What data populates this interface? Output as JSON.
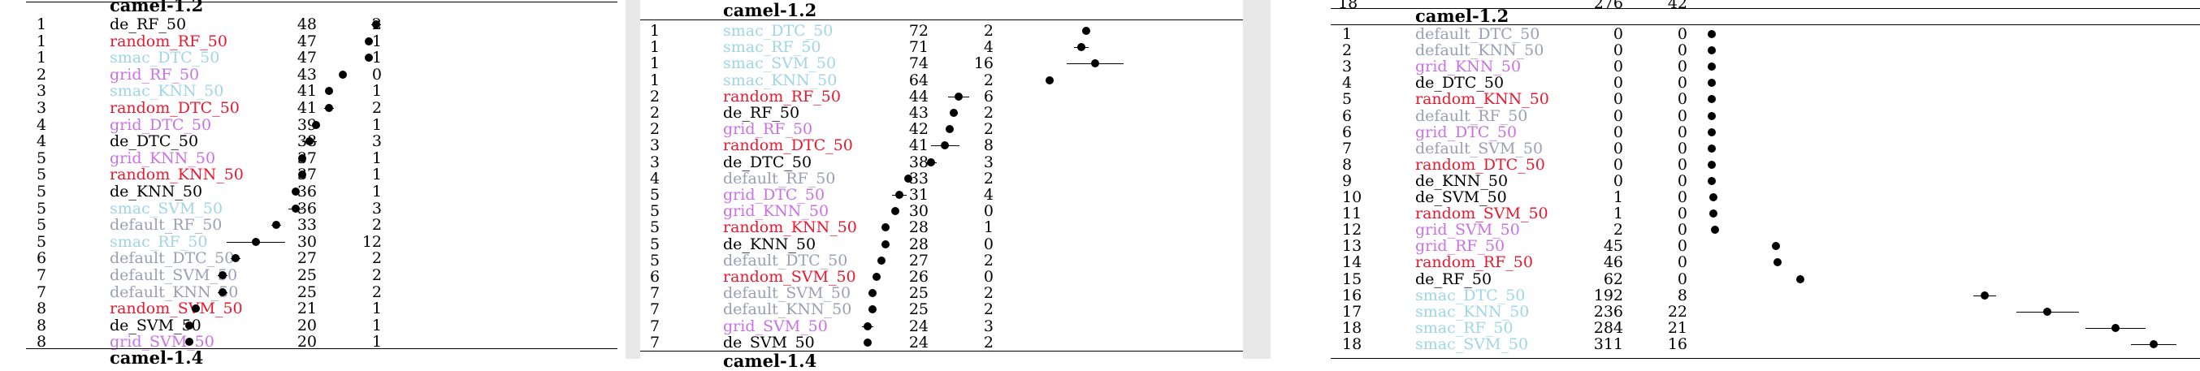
{
  "colors": {
    "de": "#000000",
    "random": "#e8182f",
    "smac": "#9fd6e6",
    "grid": "#c872e4",
    "default": "#9a9fb4"
  },
  "panels": [
    {
      "title": "camel-1.2",
      "bottom_title": "camel-1.4",
      "scale_max": 100,
      "rows": [
        {
          "rank": "1",
          "name": "de_RF_50",
          "c1": "48",
          "c2": "2",
          "mean": 48,
          "err": 2
        },
        {
          "rank": "1",
          "name": "random_RF_50",
          "c1": "47",
          "c2": "1",
          "mean": 47,
          "err": 1
        },
        {
          "rank": "1",
          "name": "smac_DTC_50",
          "c1": "47",
          "c2": "1",
          "mean": 47,
          "err": 1
        },
        {
          "rank": "2",
          "name": "grid_RF_50",
          "c1": "43",
          "c2": "0",
          "mean": 43,
          "err": 0
        },
        {
          "rank": "3",
          "name": "smac_KNN_50",
          "c1": "41",
          "c2": "1",
          "mean": 41,
          "err": 1
        },
        {
          "rank": "3",
          "name": "random_DTC_50",
          "c1": "41",
          "c2": "2",
          "mean": 41,
          "err": 2
        },
        {
          "rank": "4",
          "name": "grid_DTC_50",
          "c1": "39",
          "c2": "1",
          "mean": 39,
          "err": 1
        },
        {
          "rank": "4",
          "name": "de_DTC_50",
          "c1": "38",
          "c2": "3",
          "mean": 38,
          "err": 3
        },
        {
          "rank": "5",
          "name": "grid_KNN_50",
          "c1": "37",
          "c2": "1",
          "mean": 37,
          "err": 1
        },
        {
          "rank": "5",
          "name": "random_KNN_50",
          "c1": "37",
          "c2": "1",
          "mean": 37,
          "err": 1
        },
        {
          "rank": "5",
          "name": "de_KNN_50",
          "c1": "36",
          "c2": "1",
          "mean": 36,
          "err": 1
        },
        {
          "rank": "5",
          "name": "smac_SVM_50",
          "c1": "36",
          "c2": "3",
          "mean": 36,
          "err": 3
        },
        {
          "rank": "5",
          "name": "default_RF_50",
          "c1": "33",
          "c2": "2",
          "mean": 33,
          "err": 2
        },
        {
          "rank": "5",
          "name": "smac_RF_50",
          "c1": "30",
          "c2": "12",
          "mean": 30,
          "err": 12
        },
        {
          "rank": "6",
          "name": "default_DTC_50",
          "c1": "27",
          "c2": "2",
          "mean": 27,
          "err": 2
        },
        {
          "rank": "7",
          "name": "default_SVM_50",
          "c1": "25",
          "c2": "2",
          "mean": 25,
          "err": 2
        },
        {
          "rank": "7",
          "name": "default_KNN_50",
          "c1": "25",
          "c2": "2",
          "mean": 25,
          "err": 2
        },
        {
          "rank": "8",
          "name": "random_SVM_50",
          "c1": "21",
          "c2": "1",
          "mean": 21,
          "err": 1
        },
        {
          "rank": "8",
          "name": "de_SVM_50",
          "c1": "20",
          "c2": "1",
          "mean": 20,
          "err": 1
        },
        {
          "rank": "8",
          "name": "grid_SVM_50",
          "c1": "20",
          "c2": "1",
          "mean": 20,
          "err": 1
        }
      ]
    },
    {
      "title": "camel-1.2",
      "bottom_title": "camel-1.4",
      "scale_max": 100,
      "rows": [
        {
          "rank": "1",
          "name": "smac_DTC_50",
          "c1": "72",
          "c2": "2",
          "mean": 72,
          "err": 2
        },
        {
          "rank": "1",
          "name": "smac_RF_50",
          "c1": "71",
          "c2": "4",
          "mean": 71,
          "err": 4
        },
        {
          "rank": "1",
          "name": "smac_SVM_50",
          "c1": "74",
          "c2": "16",
          "mean": 74,
          "err": 16
        },
        {
          "rank": "1",
          "name": "smac_KNN_50",
          "c1": "64",
          "c2": "2",
          "mean": 64,
          "err": 2
        },
        {
          "rank": "2",
          "name": "random_RF_50",
          "c1": "44",
          "c2": "6",
          "mean": 44,
          "err": 6
        },
        {
          "rank": "2",
          "name": "de_RF_50",
          "c1": "43",
          "c2": "2",
          "mean": 43,
          "err": 2
        },
        {
          "rank": "2",
          "name": "grid_RF_50",
          "c1": "42",
          "c2": "2",
          "mean": 42,
          "err": 2
        },
        {
          "rank": "3",
          "name": "random_DTC_50",
          "c1": "41",
          "c2": "8",
          "mean": 41,
          "err": 8
        },
        {
          "rank": "3",
          "name": "de_DTC_50",
          "c1": "38",
          "c2": "3",
          "mean": 38,
          "err": 3
        },
        {
          "rank": "4",
          "name": "default_RF_50",
          "c1": "33",
          "c2": "2",
          "mean": 33,
          "err": 2
        },
        {
          "rank": "5",
          "name": "grid_DTC_50",
          "c1": "31",
          "c2": "4",
          "mean": 31,
          "err": 4
        },
        {
          "rank": "5",
          "name": "grid_KNN_50",
          "c1": "30",
          "c2": "0",
          "mean": 30,
          "err": 0
        },
        {
          "rank": "5",
          "name": "random_KNN_50",
          "c1": "28",
          "c2": "1",
          "mean": 28,
          "err": 1
        },
        {
          "rank": "5",
          "name": "de_KNN_50",
          "c1": "28",
          "c2": "0",
          "mean": 28,
          "err": 0
        },
        {
          "rank": "5",
          "name": "default_DTC_50",
          "c1": "27",
          "c2": "2",
          "mean": 27,
          "err": 2
        },
        {
          "rank": "6",
          "name": "random_SVM_50",
          "c1": "26",
          "c2": "0",
          "mean": 26,
          "err": 0
        },
        {
          "rank": "7",
          "name": "default_SVM_50",
          "c1": "25",
          "c2": "2",
          "mean": 25,
          "err": 2
        },
        {
          "rank": "7",
          "name": "default_KNN_50",
          "c1": "25",
          "c2": "2",
          "mean": 25,
          "err": 2
        },
        {
          "rank": "7",
          "name": "grid_SVM_50",
          "c1": "24",
          "c2": "3",
          "mean": 24,
          "err": 3
        },
        {
          "rank": "7",
          "name": "de_SVM_50",
          "c1": "24",
          "c2": "2",
          "mean": 24,
          "err": 2
        }
      ]
    },
    {
      "title": "camel-1.2",
      "prev_row": {
        "rank": "18",
        "c1": "276",
        "c2": "42"
      },
      "scale_max": 320,
      "rows": [
        {
          "rank": "1",
          "name": "default_DTC_50",
          "c1": "0",
          "c2": "0",
          "mean": 0,
          "err": 0
        },
        {
          "rank": "2",
          "name": "default_KNN_50",
          "c1": "0",
          "c2": "0",
          "mean": 0,
          "err": 0
        },
        {
          "rank": "3",
          "name": "grid_KNN_50",
          "c1": "0",
          "c2": "0",
          "mean": 0,
          "err": 0
        },
        {
          "rank": "4",
          "name": "de_DTC_50",
          "c1": "0",
          "c2": "0",
          "mean": 0,
          "err": 0
        },
        {
          "rank": "5",
          "name": "random_KNN_50",
          "c1": "0",
          "c2": "0",
          "mean": 0,
          "err": 0
        },
        {
          "rank": "6",
          "name": "default_RF_50",
          "c1": "0",
          "c2": "0",
          "mean": 0,
          "err": 0
        },
        {
          "rank": "6",
          "name": "grid_DTC_50",
          "c1": "0",
          "c2": "0",
          "mean": 0,
          "err": 0
        },
        {
          "rank": "7",
          "name": "default_SVM_50",
          "c1": "0",
          "c2": "0",
          "mean": 0,
          "err": 0
        },
        {
          "rank": "8",
          "name": "random_DTC_50",
          "c1": "0",
          "c2": "0",
          "mean": 0,
          "err": 0
        },
        {
          "rank": "9",
          "name": "de_KNN_50",
          "c1": "0",
          "c2": "0",
          "mean": 0,
          "err": 0
        },
        {
          "rank": "10",
          "name": "de_SVM_50",
          "c1": "1",
          "c2": "0",
          "mean": 1,
          "err": 0
        },
        {
          "rank": "11",
          "name": "random_SVM_50",
          "c1": "1",
          "c2": "0",
          "mean": 1,
          "err": 0
        },
        {
          "rank": "12",
          "name": "grid_SVM_50",
          "c1": "2",
          "c2": "0",
          "mean": 2,
          "err": 0
        },
        {
          "rank": "13",
          "name": "grid_RF_50",
          "c1": "45",
          "c2": "0",
          "mean": 45,
          "err": 0
        },
        {
          "rank": "14",
          "name": "random_RF_50",
          "c1": "46",
          "c2": "0",
          "mean": 46,
          "err": 0
        },
        {
          "rank": "15",
          "name": "de_RF_50",
          "c1": "62",
          "c2": "0",
          "mean": 62,
          "err": 0
        },
        {
          "rank": "16",
          "name": "smac_DTC_50",
          "c1": "192",
          "c2": "8",
          "mean": 192,
          "err": 8
        },
        {
          "rank": "17",
          "name": "smac_KNN_50",
          "c1": "236",
          "c2": "22",
          "mean": 236,
          "err": 22
        },
        {
          "rank": "18",
          "name": "smac_RF_50",
          "c1": "284",
          "c2": "21",
          "mean": 284,
          "err": 21
        },
        {
          "rank": "18",
          "name": "smac_SVM_50",
          "c1": "311",
          "c2": "16",
          "mean": 311,
          "err": 16
        }
      ]
    }
  ]
}
